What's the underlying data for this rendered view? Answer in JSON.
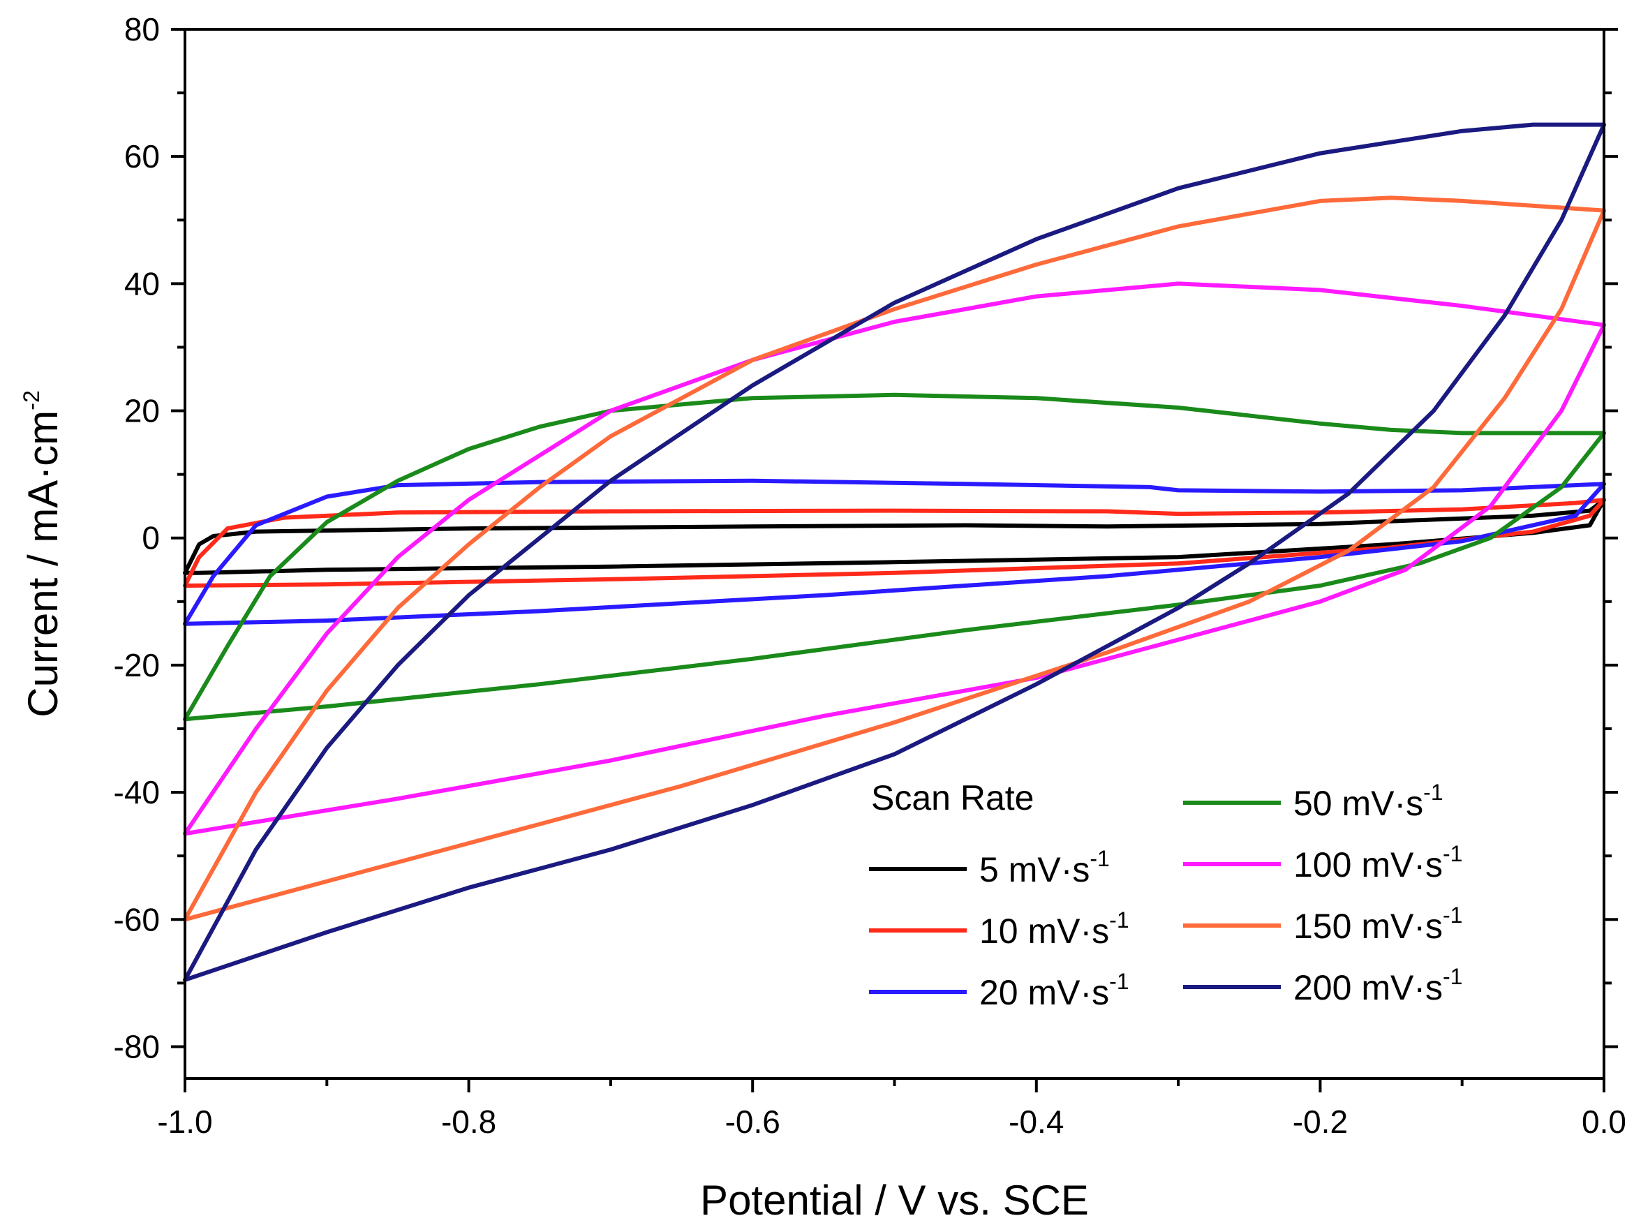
{
  "chart_data": {
    "type": "line",
    "title": "",
    "xlabel": "Potential / V vs. SCE",
    "ylabel": "Current / mA·cm",
    "ylabel_superscript": "-2",
    "xlim": [
      -1.0,
      0.0
    ],
    "ylim": [
      -85,
      80
    ],
    "x_ticks": [
      -1.0,
      -0.8,
      -0.6,
      -0.4,
      -0.2,
      0.0
    ],
    "x_tick_labels": [
      "-1.0",
      "-0.8",
      "-0.6",
      "-0.4",
      "-0.2",
      "0.0"
    ],
    "y_ticks": [
      -80,
      -60,
      -40,
      -20,
      0,
      20,
      40,
      60,
      80
    ],
    "y_tick_labels": [
      "-80",
      "-60",
      "-40",
      "-20",
      "0",
      "20",
      "40",
      "60",
      "80"
    ],
    "grid": false,
    "legend": {
      "title": "Scan Rate",
      "position": "bottom-right",
      "columns": 2
    },
    "series": [
      {
        "name": "5 mV·s",
        "name_superscript": "-1",
        "color": "#000000",
        "anodic": [
          [
            -1.0,
            -5.5
          ],
          [
            -0.99,
            -1
          ],
          [
            -0.98,
            0.3
          ],
          [
            -0.95,
            1.0
          ],
          [
            -0.8,
            1.5
          ],
          [
            -0.6,
            1.8
          ],
          [
            -0.45,
            2.0
          ],
          [
            -0.35,
            1.8
          ],
          [
            -0.2,
            2.2
          ],
          [
            -0.05,
            3.5
          ],
          [
            -0.01,
            4.3
          ],
          [
            0.0,
            6.0
          ]
        ],
        "cathodic": [
          [
            0.0,
            6.0
          ],
          [
            -0.01,
            2.0
          ],
          [
            -0.05,
            0.8
          ],
          [
            -0.15,
            -1.0
          ],
          [
            -0.3,
            -3.0
          ],
          [
            -0.5,
            -3.8
          ],
          [
            -0.7,
            -4.5
          ],
          [
            -0.9,
            -5.0
          ],
          [
            -0.99,
            -5.5
          ],
          [
            -1.0,
            -5.5
          ]
        ]
      },
      {
        "name": "10 mV·s",
        "name_superscript": "-1",
        "color": "#ff2a1a",
        "anodic": [
          [
            -1.0,
            -7.5
          ],
          [
            -0.99,
            -3
          ],
          [
            -0.97,
            1.5
          ],
          [
            -0.93,
            3.2
          ],
          [
            -0.85,
            4.0
          ],
          [
            -0.7,
            4.2
          ],
          [
            -0.5,
            4.3
          ],
          [
            -0.35,
            4.2
          ],
          [
            -0.3,
            3.8
          ],
          [
            -0.2,
            4.0
          ],
          [
            -0.1,
            4.5
          ],
          [
            -0.02,
            5.5
          ],
          [
            0.0,
            6.0
          ]
        ],
        "cathodic": [
          [
            0.0,
            6.0
          ],
          [
            -0.01,
            3.5
          ],
          [
            -0.05,
            1.0
          ],
          [
            -0.15,
            -1.5
          ],
          [
            -0.3,
            -4.0
          ],
          [
            -0.5,
            -5.5
          ],
          [
            -0.7,
            -6.5
          ],
          [
            -0.9,
            -7.3
          ],
          [
            -1.0,
            -7.5
          ]
        ]
      },
      {
        "name": "20 mV·s",
        "name_superscript": "-1",
        "color": "#2a1aff",
        "anodic": [
          [
            -1.0,
            -13.5
          ],
          [
            -0.98,
            -6
          ],
          [
            -0.95,
            2
          ],
          [
            -0.9,
            6.5
          ],
          [
            -0.85,
            8.3
          ],
          [
            -0.75,
            8.8
          ],
          [
            -0.6,
            9.0
          ],
          [
            -0.45,
            8.5
          ],
          [
            -0.32,
            8.0
          ],
          [
            -0.3,
            7.5
          ],
          [
            -0.2,
            7.3
          ],
          [
            -0.1,
            7.5
          ],
          [
            0.0,
            8.5
          ]
        ],
        "cathodic": [
          [
            0.0,
            8.5
          ],
          [
            -0.02,
            3.5
          ],
          [
            -0.1,
            -0.5
          ],
          [
            -0.2,
            -3.0
          ],
          [
            -0.35,
            -6.0
          ],
          [
            -0.55,
            -9.0
          ],
          [
            -0.75,
            -11.5
          ],
          [
            -0.9,
            -13.0
          ],
          [
            -1.0,
            -13.5
          ]
        ]
      },
      {
        "name": "50 mV·s",
        "name_superscript": "-1",
        "color": "#1a8a1a",
        "anodic": [
          [
            -1.0,
            -28.5
          ],
          [
            -0.97,
            -17
          ],
          [
            -0.94,
            -6
          ],
          [
            -0.9,
            2.5
          ],
          [
            -0.85,
            9
          ],
          [
            -0.8,
            14
          ],
          [
            -0.75,
            17.5
          ],
          [
            -0.7,
            20
          ],
          [
            -0.6,
            22
          ],
          [
            -0.5,
            22.5
          ],
          [
            -0.4,
            22
          ],
          [
            -0.3,
            20.5
          ],
          [
            -0.2,
            18
          ],
          [
            -0.15,
            17
          ],
          [
            -0.1,
            16.5
          ],
          [
            0.0,
            16.5
          ]
        ],
        "cathodic": [
          [
            0.0,
            16.5
          ],
          [
            -0.03,
            8
          ],
          [
            -0.08,
            0
          ],
          [
            -0.13,
            -4
          ],
          [
            -0.2,
            -7.5
          ],
          [
            -0.3,
            -10.5
          ],
          [
            -0.45,
            -14.5
          ],
          [
            -0.6,
            -19
          ],
          [
            -0.75,
            -23
          ],
          [
            -0.9,
            -26.5
          ],
          [
            -1.0,
            -28.5
          ]
        ]
      },
      {
        "name": "100 mV·s",
        "name_superscript": "-1",
        "color": "#ff1aff",
        "anodic": [
          [
            -1.0,
            -46.5
          ],
          [
            -0.95,
            -30
          ],
          [
            -0.9,
            -15
          ],
          [
            -0.85,
            -3
          ],
          [
            -0.8,
            6
          ],
          [
            -0.75,
            13
          ],
          [
            -0.7,
            20
          ],
          [
            -0.6,
            28
          ],
          [
            -0.5,
            34
          ],
          [
            -0.4,
            38
          ],
          [
            -0.3,
            40
          ],
          [
            -0.2,
            39
          ],
          [
            -0.1,
            36.5
          ],
          [
            0.0,
            33.5
          ]
        ],
        "cathodic": [
          [
            0.0,
            33.5
          ],
          [
            -0.03,
            20
          ],
          [
            -0.08,
            5
          ],
          [
            -0.14,
            -5
          ],
          [
            -0.2,
            -10
          ],
          [
            -0.3,
            -16
          ],
          [
            -0.4,
            -22
          ],
          [
            -0.55,
            -28
          ],
          [
            -0.7,
            -35
          ],
          [
            -0.85,
            -41
          ],
          [
            -1.0,
            -46.5
          ]
        ]
      },
      {
        "name": "150 mV·s",
        "name_superscript": "-1",
        "color": "#ff6a3a",
        "anodic": [
          [
            -1.0,
            -60
          ],
          [
            -0.95,
            -40
          ],
          [
            -0.9,
            -24
          ],
          [
            -0.85,
            -11
          ],
          [
            -0.8,
            -1
          ],
          [
            -0.75,
            8
          ],
          [
            -0.7,
            16
          ],
          [
            -0.6,
            28
          ],
          [
            -0.5,
            36
          ],
          [
            -0.4,
            43
          ],
          [
            -0.3,
            49
          ],
          [
            -0.2,
            53
          ],
          [
            -0.15,
            53.5
          ],
          [
            -0.1,
            53
          ],
          [
            0.0,
            51.5
          ]
        ],
        "cathodic": [
          [
            0.0,
            51.5
          ],
          [
            -0.03,
            36
          ],
          [
            -0.07,
            22
          ],
          [
            -0.12,
            8
          ],
          [
            -0.18,
            -2
          ],
          [
            -0.25,
            -10
          ],
          [
            -0.35,
            -18
          ],
          [
            -0.5,
            -29
          ],
          [
            -0.65,
            -39
          ],
          [
            -0.8,
            -48
          ],
          [
            -0.9,
            -54
          ],
          [
            -1.0,
            -60
          ]
        ]
      },
      {
        "name": "200 mV·s",
        "name_superscript": "-1",
        "color": "#1a1a80",
        "anodic": [
          [
            -1.0,
            -69.5
          ],
          [
            -0.95,
            -49
          ],
          [
            -0.9,
            -33
          ],
          [
            -0.85,
            -20
          ],
          [
            -0.8,
            -9
          ],
          [
            -0.75,
            0
          ],
          [
            -0.7,
            9
          ],
          [
            -0.6,
            24
          ],
          [
            -0.5,
            37
          ],
          [
            -0.4,
            47
          ],
          [
            -0.3,
            55
          ],
          [
            -0.2,
            60.5
          ],
          [
            -0.1,
            64
          ],
          [
            -0.05,
            65
          ],
          [
            0.0,
            65
          ]
        ],
        "cathodic": [
          [
            0.0,
            65
          ],
          [
            -0.03,
            50
          ],
          [
            -0.07,
            35
          ],
          [
            -0.12,
            20
          ],
          [
            -0.18,
            7
          ],
          [
            -0.25,
            -4
          ],
          [
            -0.3,
            -11
          ],
          [
            -0.4,
            -23
          ],
          [
            -0.5,
            -34
          ],
          [
            -0.6,
            -42
          ],
          [
            -0.7,
            -49
          ],
          [
            -0.8,
            -55
          ],
          [
            -0.9,
            -62
          ],
          [
            -1.0,
            -69.5
          ]
        ]
      }
    ]
  }
}
